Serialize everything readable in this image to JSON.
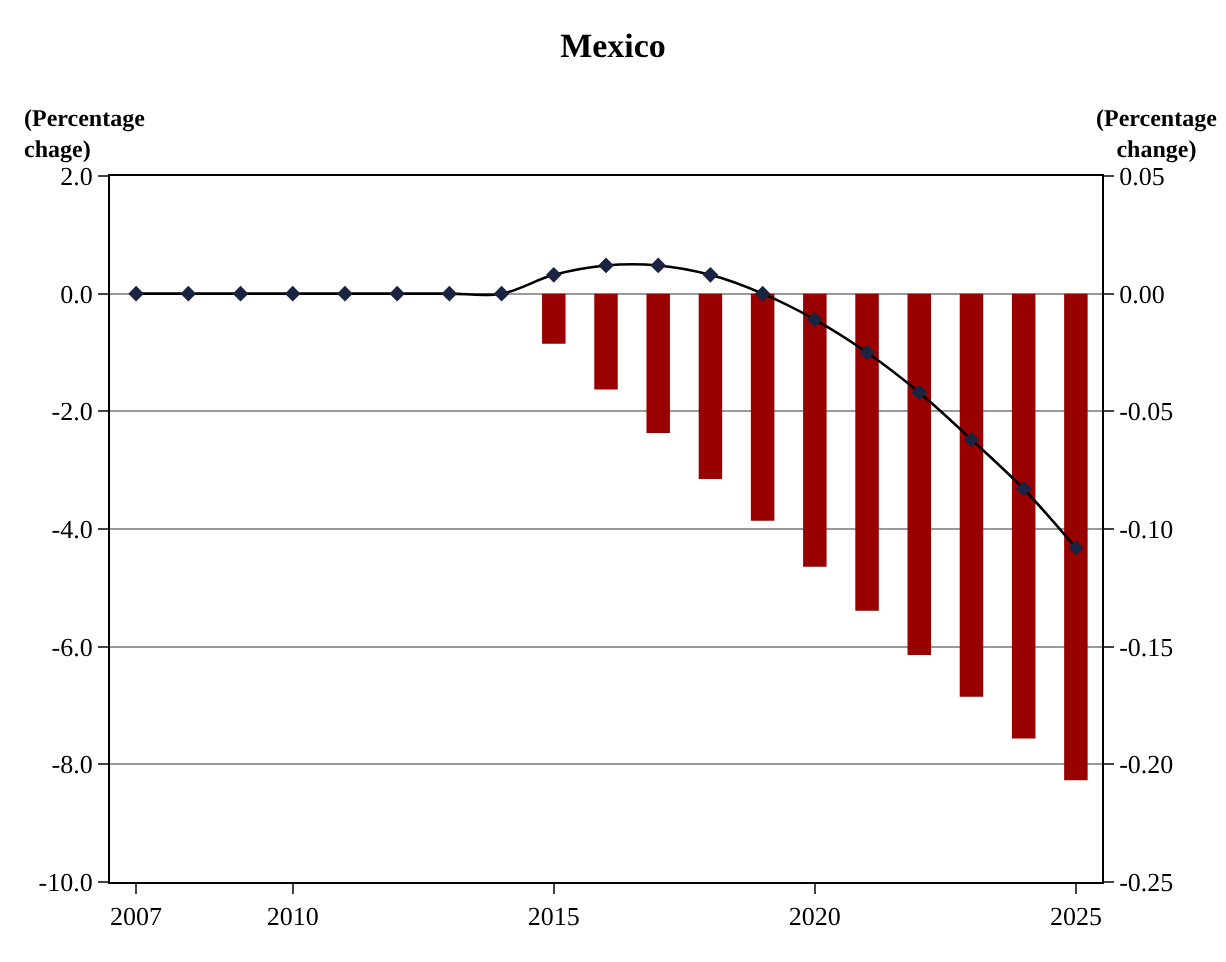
{
  "chart_data": {
    "type": "bar",
    "title": "Mexico",
    "ylabel": "(Percentage chage)",
    "y2label": "(Percentage change)",
    "x": [
      2007,
      2008,
      2009,
      2010,
      2011,
      2012,
      2013,
      2014,
      2015,
      2016,
      2017,
      2018,
      2019,
      2020,
      2021,
      2022,
      2023,
      2024,
      2025
    ],
    "xlim": [
      2006.5,
      2025.5
    ],
    "xticks": [
      2007,
      2010,
      2015,
      2020,
      2025
    ],
    "ylim": [
      -10,
      2
    ],
    "yticks": [
      {
        "value": -10,
        "label": "-10.0"
      },
      {
        "value": -8,
        "label": "-8.0"
      },
      {
        "value": -6,
        "label": "-6.0"
      },
      {
        "value": -4,
        "label": "-4.0"
      },
      {
        "value": -2,
        "label": "-2.0"
      },
      {
        "value": 0,
        "label": "0.0"
      },
      {
        "value": 2,
        "label": "2.0"
      }
    ],
    "y2lim": [
      -0.25,
      0.05
    ],
    "y2ticks": [
      {
        "value": -0.25,
        "label": "-0.25"
      },
      {
        "value": -0.2,
        "label": "-0.20"
      },
      {
        "value": -0.15,
        "label": "-0.15"
      },
      {
        "value": -0.1,
        "label": "-0.10"
      },
      {
        "value": -0.05,
        "label": "-0.05"
      },
      {
        "value": 0,
        "label": "0.00"
      },
      {
        "value": 0.05,
        "label": "0.05"
      }
    ],
    "grid": "y",
    "legend": false,
    "series": [
      {
        "color": "#990000",
        "values": [
          0,
          0,
          0,
          0,
          0,
          0,
          0,
          0,
          -0.85,
          -1.63,
          -2.37,
          -3.15,
          -3.86,
          -4.64,
          -5.39,
          -6.14,
          -6.85,
          -7.56,
          -8.27
        ]
      },
      {
        "type": "line",
        "axis": "y2",
        "color": "#1a2440",
        "marker": "diamond",
        "line_style": "solid",
        "values": [
          0,
          0,
          0,
          0,
          0,
          0,
          0,
          0,
          0.008,
          0.012,
          0.012,
          0.008,
          0.0,
          -0.011,
          -0.025,
          -0.042,
          -0.062,
          -0.083,
          -0.108
        ]
      }
    ]
  }
}
